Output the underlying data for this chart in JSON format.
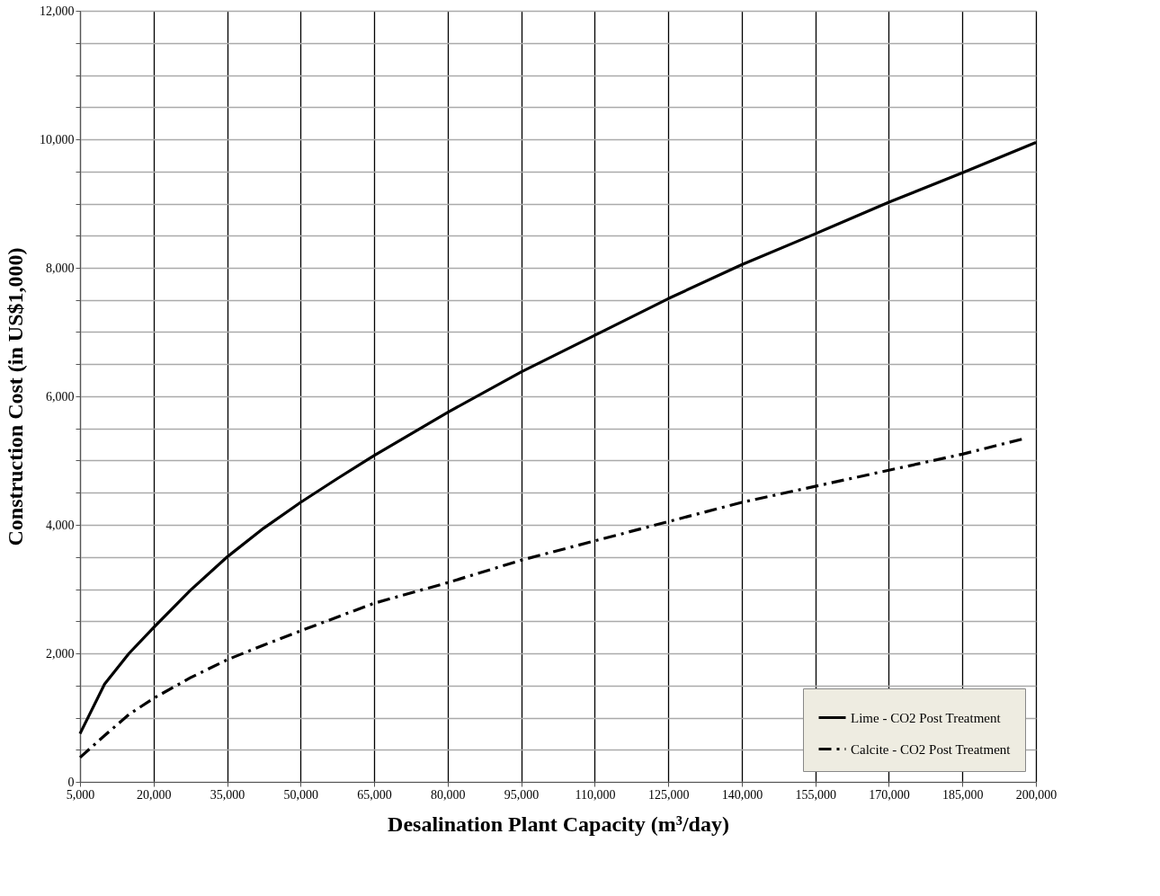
{
  "chart_data": {
    "type": "line",
    "xlabel": "Desalination Plant Capacity (m³/day)",
    "ylabel": "Construction Cost (in US$1,000)",
    "xlim": [
      5000,
      200000
    ],
    "xticks": [
      {
        "value": 5000,
        "label": "5,000"
      },
      {
        "value": 20000,
        "label": "20,000"
      },
      {
        "value": 35000,
        "label": "35,000"
      },
      {
        "value": 50000,
        "label": "50,000"
      },
      {
        "value": 65000,
        "label": "65,000"
      },
      {
        "value": 80000,
        "label": "80,000"
      },
      {
        "value": 95000,
        "label": "95,000"
      },
      {
        "value": 110000,
        "label": "110,000"
      },
      {
        "value": 125000,
        "label": "125,000"
      },
      {
        "value": 140000,
        "label": "140,000"
      },
      {
        "value": 155000,
        "label": "155,000"
      },
      {
        "value": 170000,
        "label": "170,000"
      },
      {
        "value": 185000,
        "label": "185,000"
      },
      {
        "value": 200000,
        "label": "200,000"
      }
    ],
    "ylim": [
      0,
      12000
    ],
    "yticks": [
      0,
      {
        "value": 500,
        "label": null
      },
      {
        "value": 1000,
        "label": null
      },
      {
        "value": 1500,
        "label": null
      },
      {
        "value": 2000,
        "label": "2,000"
      },
      {
        "value": 2500,
        "label": null
      },
      {
        "value": 3000,
        "label": null
      },
      {
        "value": 3500,
        "label": null
      },
      {
        "value": 4000,
        "label": "4,000"
      },
      {
        "value": 4500,
        "label": null
      },
      {
        "value": 5000,
        "label": null
      },
      {
        "value": 5500,
        "label": null
      },
      {
        "value": 6000,
        "label": "6,000"
      },
      {
        "value": 6500,
        "label": null
      },
      {
        "value": 7000,
        "label": null
      },
      {
        "value": 7500,
        "label": null
      },
      {
        "value": 8000,
        "label": "8,000"
      },
      {
        "value": 8500,
        "label": null
      },
      {
        "value": 9000,
        "label": null
      },
      {
        "value": 9500,
        "label": null
      },
      {
        "value": 10000,
        "label": "10,000"
      },
      {
        "value": 10500,
        "label": null
      },
      {
        "value": 11000,
        "label": null
      },
      {
        "value": 11500,
        "label": null
      },
      {
        "value": 12000,
        "label": "12,000"
      }
    ],
    "grid": true,
    "legend": "bottom right",
    "marker": "none",
    "series": [
      {
        "name": "Lime - CO2 Post Treatment",
        "color": "#000000",
        "line_style": "solid",
        "x": [
          5000,
          10000,
          15000,
          20000,
          27500,
          35000,
          42500,
          50000,
          57500,
          65000,
          80000,
          95000,
          110000,
          125000,
          140000,
          155000,
          170000,
          185000,
          200000
        ],
        "values": [
          750,
          1520,
          2000,
          2400,
          2980,
          3500,
          3950,
          4350,
          4720,
          5080,
          5750,
          6380,
          6950,
          7520,
          8050,
          8530,
          9020,
          9480,
          9950
        ]
      },
      {
        "name": "Calcite - CO2 Post Treatment",
        "color": "#000000",
        "line_style": "dashed",
        "x": [
          5000,
          10000,
          15000,
          20000,
          27500,
          35000,
          42500,
          50000,
          65000,
          80000,
          95000,
          110000,
          125000,
          140000,
          155000,
          170000,
          185000,
          198000
        ],
        "values": [
          380,
          720,
          1050,
          1300,
          1620,
          1900,
          2130,
          2350,
          2780,
          3100,
          3450,
          3750,
          4050,
          4350,
          4600,
          4850,
          5100,
          5350
        ]
      }
    ]
  }
}
